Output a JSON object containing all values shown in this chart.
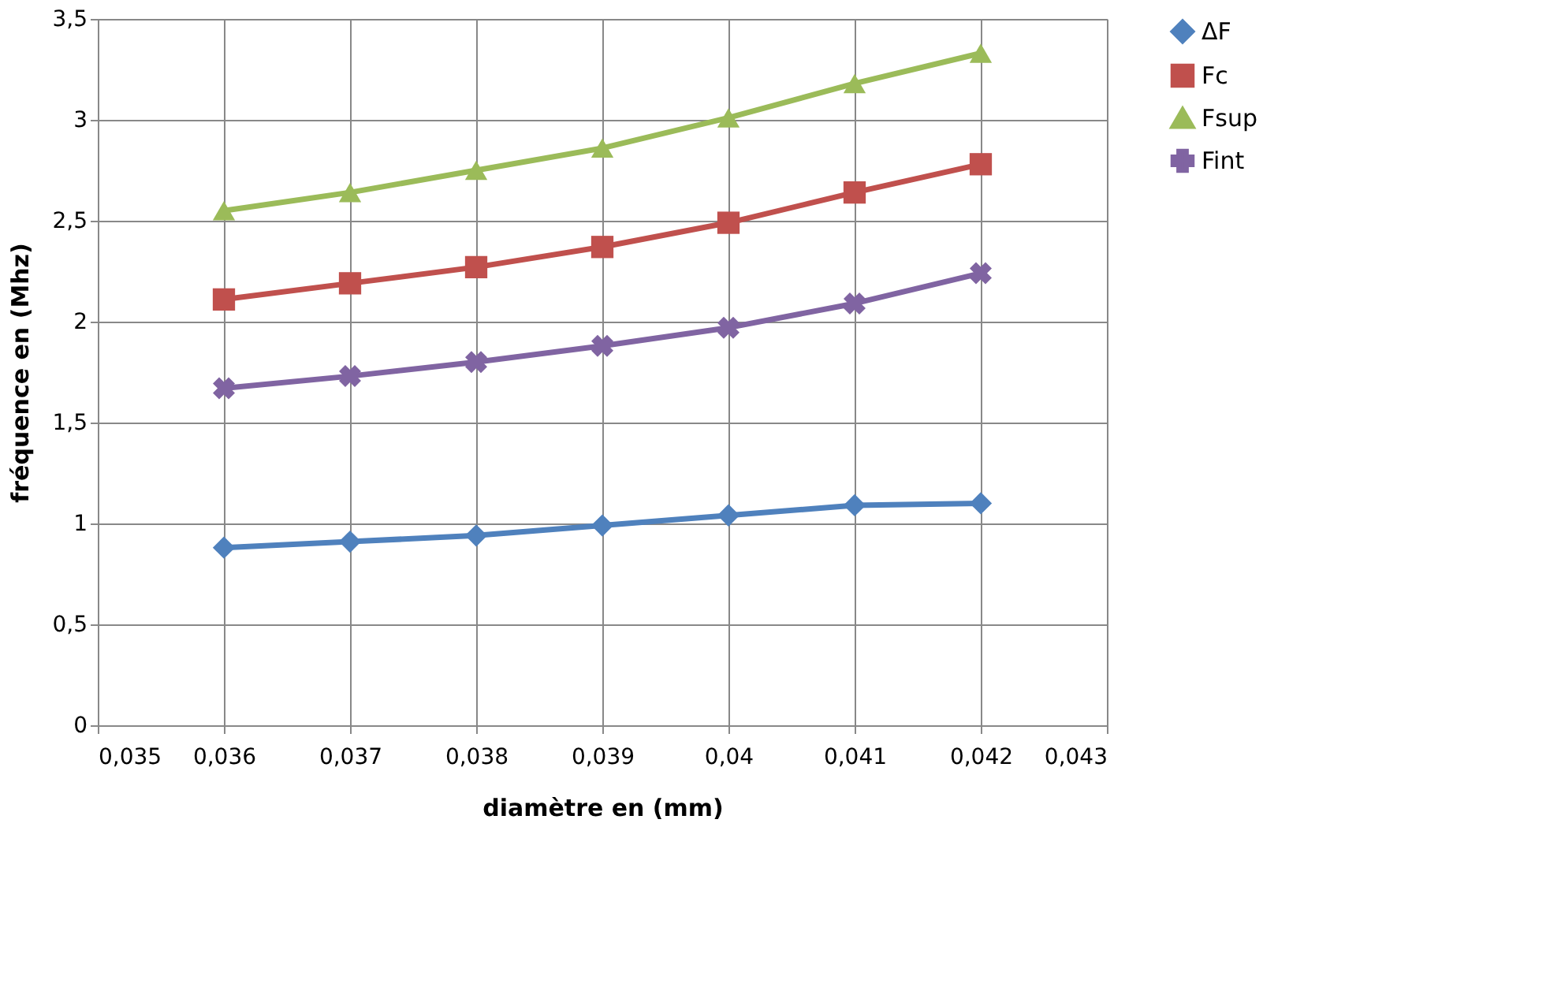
{
  "chart_data": {
    "type": "line",
    "xlabel": "diamètre en (mm)",
    "ylabel": "fréquence en (Mhz)",
    "x": [
      0.036,
      0.037,
      0.038,
      0.039,
      0.04,
      0.041,
      0.042
    ],
    "series": [
      {
        "name": "ΔF",
        "color": "#4f81bd",
        "marker": "diamond",
        "values": [
          0.88,
          0.91,
          0.94,
          0.99,
          1.04,
          1.09,
          1.1
        ]
      },
      {
        "name": "Fc",
        "color": "#c0504d",
        "marker": "square",
        "values": [
          2.11,
          2.19,
          2.27,
          2.37,
          2.49,
          2.64,
          2.78
        ]
      },
      {
        "name": "Fsup",
        "color": "#9bbb59",
        "marker": "triangle",
        "values": [
          2.55,
          2.64,
          2.75,
          2.86,
          3.01,
          3.18,
          3.33
        ]
      },
      {
        "name": "Fint",
        "color": "#8064a2",
        "marker": "cross",
        "values": [
          1.67,
          1.73,
          1.8,
          1.88,
          1.97,
          2.09,
          2.24
        ]
      }
    ],
    "xlim": [
      0.035,
      0.043
    ],
    "xticks": [
      {
        "value": 0.035,
        "label": "0,035"
      },
      {
        "value": 0.036,
        "label": "0,036"
      },
      {
        "value": 0.037,
        "label": "0,037"
      },
      {
        "value": 0.038,
        "label": "0,038"
      },
      {
        "value": 0.039,
        "label": "0,039"
      },
      {
        "value": 0.04,
        "label": "0,04"
      },
      {
        "value": 0.041,
        "label": "0,041"
      },
      {
        "value": 0.042,
        "label": "0,042"
      },
      {
        "value": 0.043,
        "label": "0,043"
      }
    ],
    "ylim": [
      0,
      3.5
    ],
    "yticks": [
      0,
      {
        "value": 0.5,
        "label": "0,5"
      },
      1,
      {
        "value": 1.5,
        "label": "1,5"
      },
      2,
      {
        "value": 2.5,
        "label": "2,5"
      },
      3,
      {
        "value": 3.5,
        "label": "3,5"
      }
    ],
    "grid": true,
    "legend": "right",
    "line_style": "solid"
  }
}
